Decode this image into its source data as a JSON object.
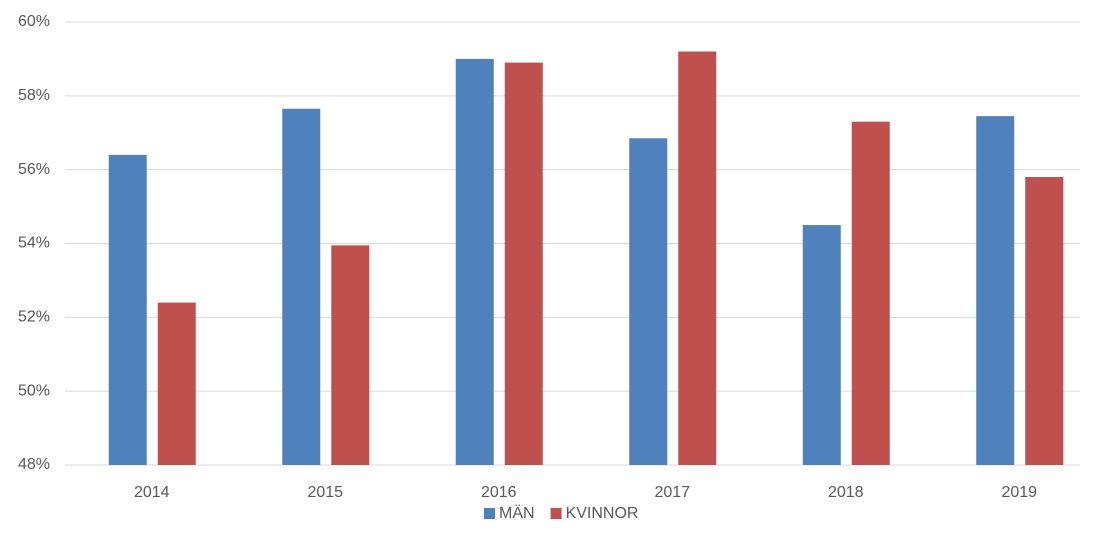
{
  "chart_data": {
    "type": "bar",
    "categories": [
      "2014",
      "2015",
      "2016",
      "2017",
      "2018",
      "2019"
    ],
    "series": [
      {
        "name": "MÄN",
        "color": "#4f81bd",
        "values": [
          56.4,
          57.65,
          59.0,
          56.85,
          54.5,
          57.45
        ]
      },
      {
        "name": "KVINNOR",
        "color": "#c0504d",
        "values": [
          52.4,
          53.95,
          58.9,
          59.2,
          57.3,
          55.8
        ]
      }
    ],
    "ylim": [
      48,
      60
    ],
    "yticks": [
      {
        "value": 48,
        "label": "48%"
      },
      {
        "value": 50,
        "label": "50%"
      },
      {
        "value": 52,
        "label": "52%"
      },
      {
        "value": 54,
        "label": "54%"
      },
      {
        "value": 56,
        "label": "56%"
      },
      {
        "value": 58,
        "label": "58%"
      },
      {
        "value": 60,
        "label": "60%"
      }
    ],
    "grid": true,
    "legend": "bottom"
  }
}
